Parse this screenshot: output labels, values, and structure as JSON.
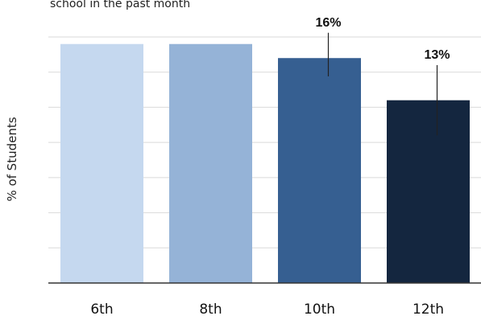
{
  "chart_data": {
    "type": "bar",
    "subtitle": "school in the past month",
    "ylabel": "% of Students",
    "xlabel": "",
    "categories": [
      "6th",
      "8th",
      "10th",
      "12th"
    ],
    "values": [
      17,
      17,
      16,
      13
    ],
    "data_labels": [
      "",
      "",
      "16%",
      "13%"
    ],
    "error_bars": [
      null,
      null,
      [
        14.7,
        17.8
      ],
      [
        10.5,
        15.5
      ]
    ],
    "ylim": [
      0,
      17.5
    ],
    "grid": true,
    "legend": "none",
    "colors": [
      "#c5d8ef",
      "#95b3d7",
      "#365f91",
      "#14263f"
    ],
    "grid_color": "#d9d9d9",
    "axis_color": "#333333"
  }
}
